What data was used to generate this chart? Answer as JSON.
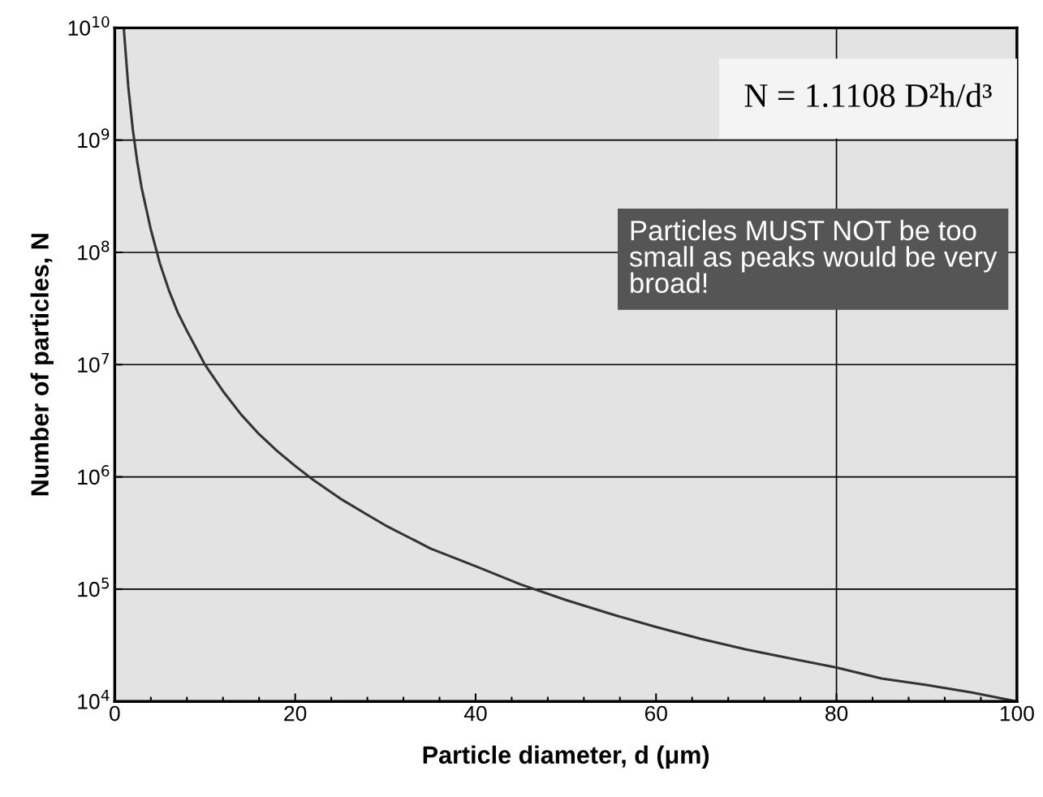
{
  "chart_data": {
    "type": "line",
    "xlabel": "Particle diameter, d (μm)",
    "ylabel": "Number of particles, N",
    "x": [
      1,
      1.5,
      2,
      2.5,
      3,
      4,
      5,
      6,
      7,
      8,
      10,
      12,
      14,
      16,
      18,
      20,
      22,
      25,
      28,
      30,
      35,
      40,
      45,
      50,
      55,
      60,
      65,
      70,
      75,
      80,
      85,
      90,
      95,
      100
    ],
    "series": [
      {
        "color": "#333333",
        "values": [
          10000000000.0,
          3000000000.0,
          1250000000.0,
          640000000.0,
          370000000.0,
          160000000.0,
          80000000.0,
          46000000.0,
          29000000.0,
          20000000.0,
          10000000.0,
          5800000.0,
          3600000.0,
          2400000.0,
          1700000.0,
          1250000.0,
          940000.0,
          640000.0,
          460000.0,
          370000.0,
          230000.0,
          160000.0,
          110000.0,
          80000.0,
          60000.0,
          46000.0,
          36000.0,
          29000.0,
          24000.0,
          20000.0,
          16000.0,
          14000.0,
          12000.0,
          10000.0
        ]
      }
    ],
    "xlim": [
      0,
      100
    ],
    "xticks": [
      0,
      20,
      40,
      60,
      80,
      100
    ],
    "ylim": [
      10000.0,
      10000000000.0
    ],
    "log": "y",
    "yticks": [
      {
        "value": 10000.0,
        "label": "10$^{4}$"
      },
      {
        "value": 100000.0,
        "label": "10$^{5}$"
      },
      {
        "value": 1000000.0,
        "label": "10$^{6}$"
      },
      {
        "value": 10000000.0,
        "label": "10$^{7}$"
      },
      {
        "value": 100000000.0,
        "label": "10$^{8}$"
      },
      {
        "value": 1000000000.0,
        "label": "10$^{9}$"
      },
      {
        "value": 10000000000.0,
        "label": "10$^{10}$"
      }
    ],
    "grid": "y",
    "line_style": "solid",
    "ref_lines": [
      {
        "axis": "x",
        "value": 80,
        "color": "#000000"
      }
    ],
    "annotations": [
      "N = 1.1108 D²h/d³",
      "Particles MUST NOT be too small as peaks would be very broad!"
    ]
  }
}
